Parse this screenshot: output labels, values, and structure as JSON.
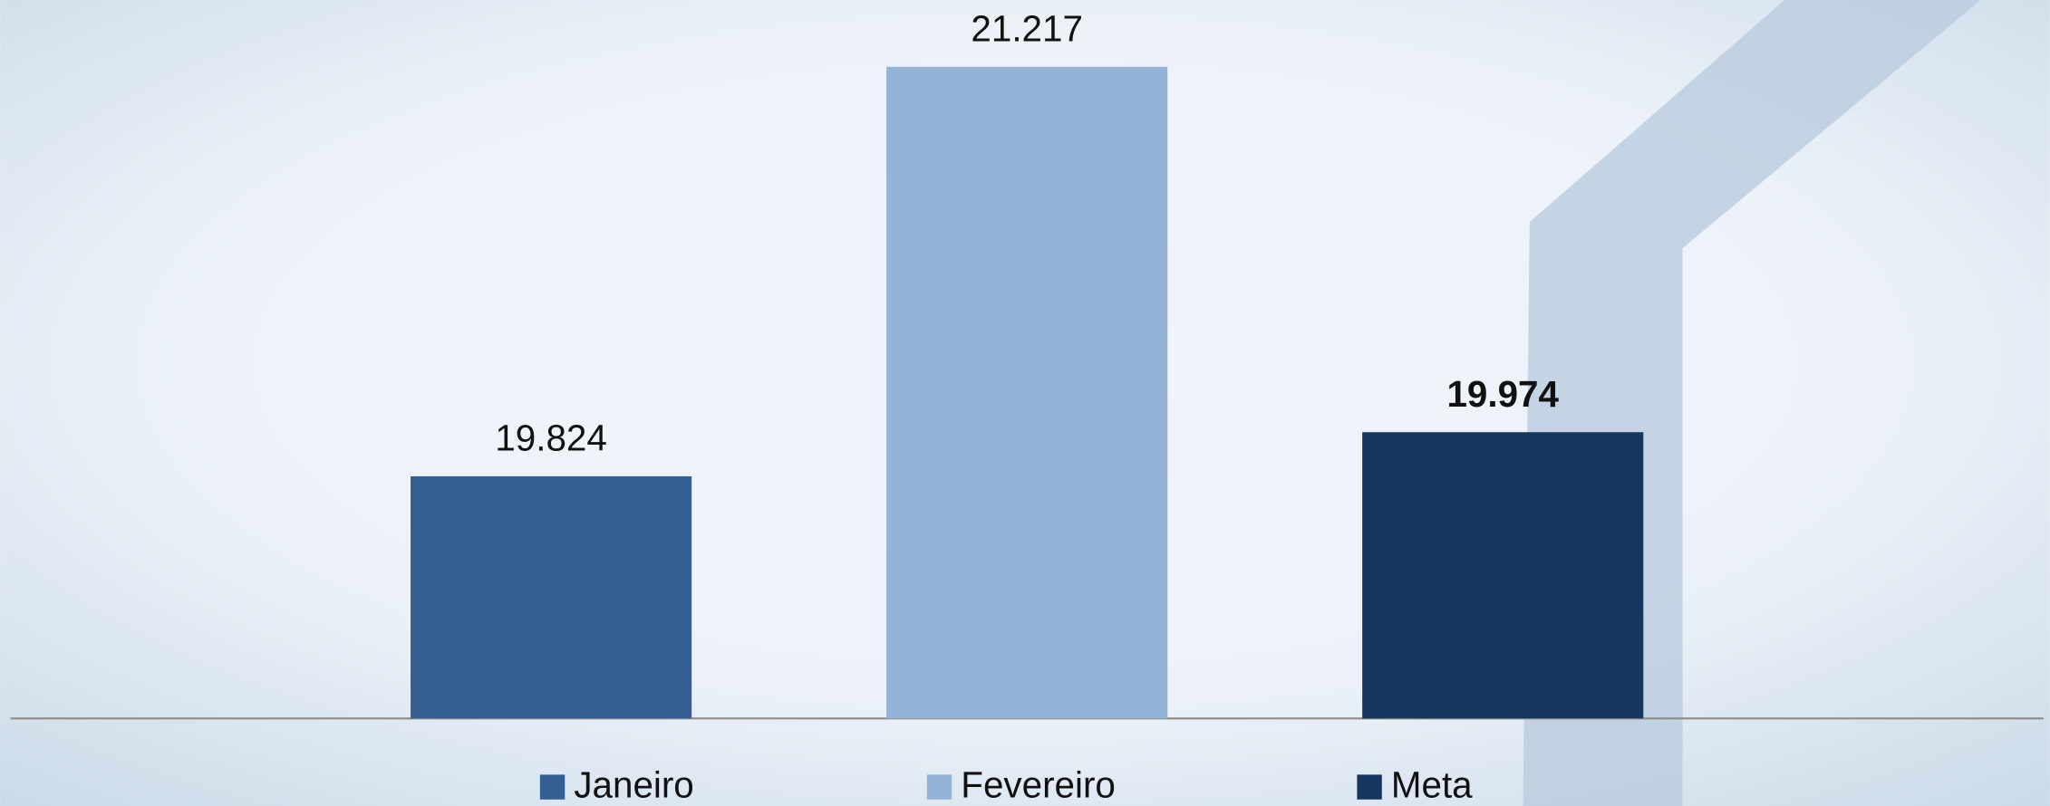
{
  "chart_data": {
    "type": "bar",
    "series": [
      {
        "name": "Janeiro",
        "color": "#355f91",
        "values": [
          19.824
        ]
      },
      {
        "name": "Fevereiro",
        "color": "#95b3d7",
        "values": [
          21.217
        ]
      },
      {
        "name": "Meta",
        "color": "#17365d",
        "values": [
          19.974
        ],
        "label_bold": true
      }
    ],
    "ylim": [
      19.0,
      21.4
    ],
    "legend": "bottom"
  }
}
